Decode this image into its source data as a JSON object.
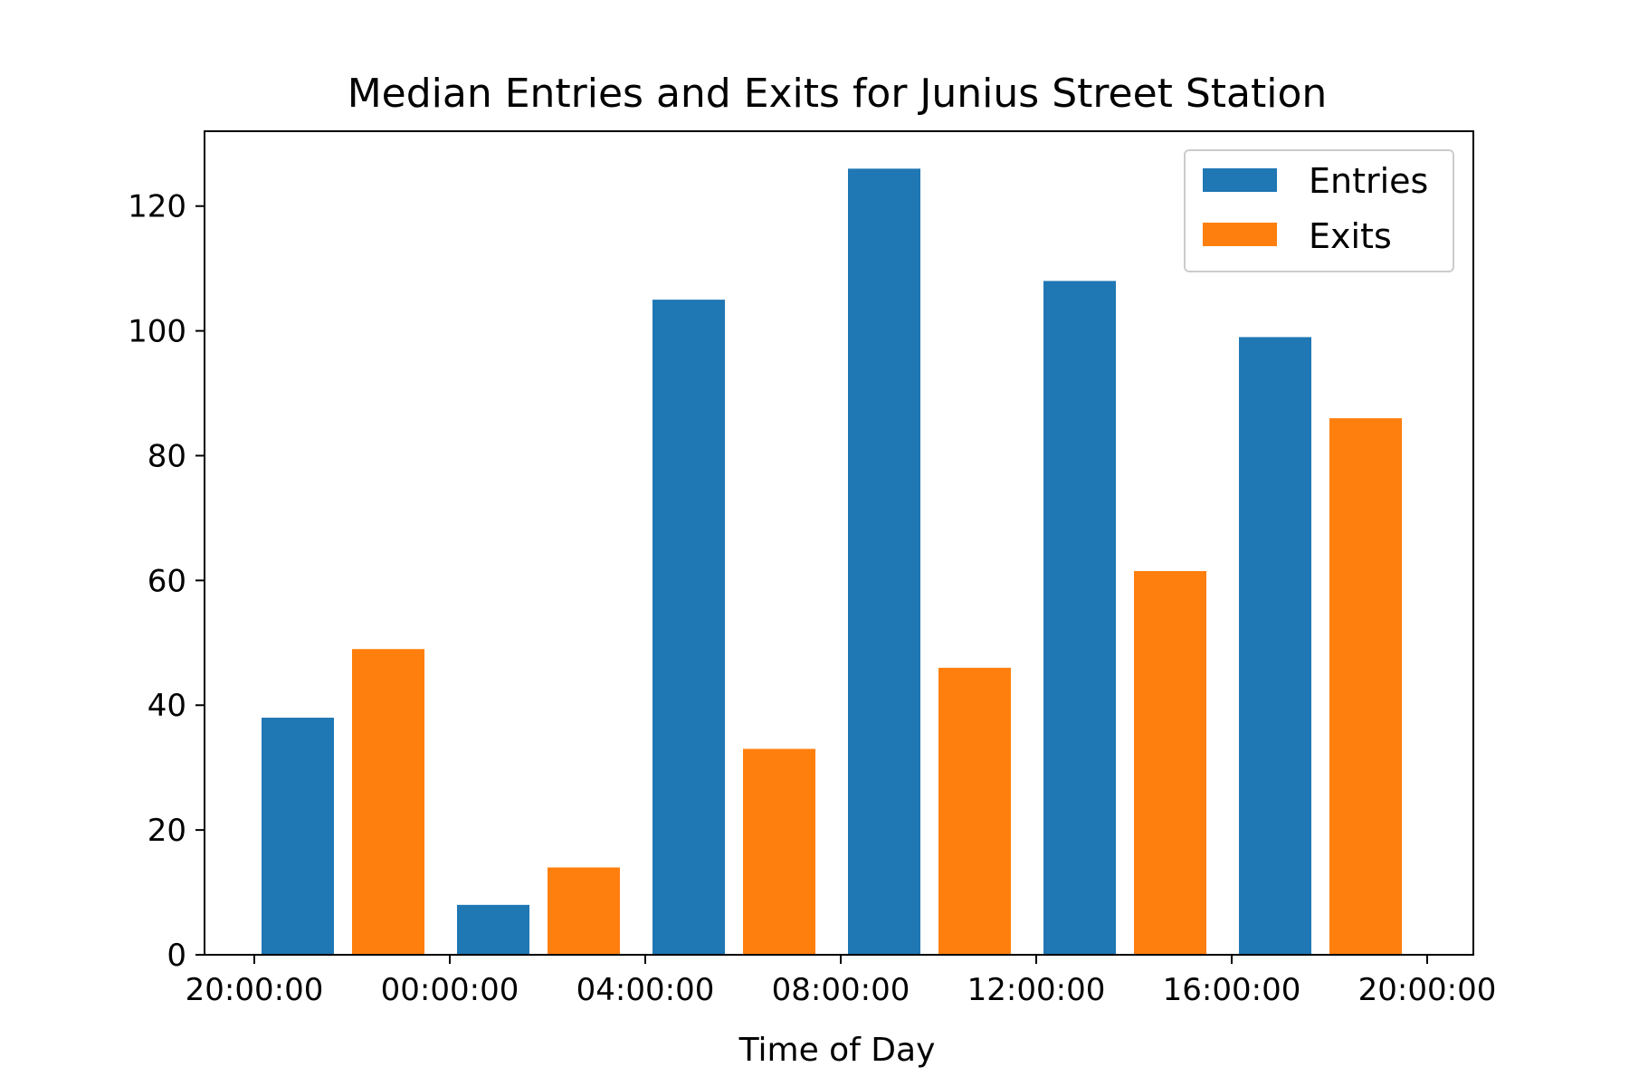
{
  "chart_data": {
    "type": "bar",
    "title": "Median Entries and Exits for Junius Street Station",
    "xlabel": "Time of Day",
    "ylabel": "",
    "x_tick_labels": [
      "20:00:00",
      "00:00:00",
      "04:00:00",
      "08:00:00",
      "12:00:00",
      "16:00:00",
      "20:00:00"
    ],
    "y_ticks": [
      0,
      20,
      40,
      60,
      80,
      100,
      120
    ],
    "ylim": [
      0,
      132
    ],
    "grid": false,
    "legend_position": "top-right",
    "series": [
      {
        "name": "Entries",
        "color": "#1f77b4",
        "values": [
          38,
          8,
          105,
          126,
          108,
          99
        ]
      },
      {
        "name": "Exits",
        "color": "#ff7f0e",
        "values": [
          49,
          14,
          33,
          46,
          61.5,
          86
        ]
      }
    ]
  }
}
